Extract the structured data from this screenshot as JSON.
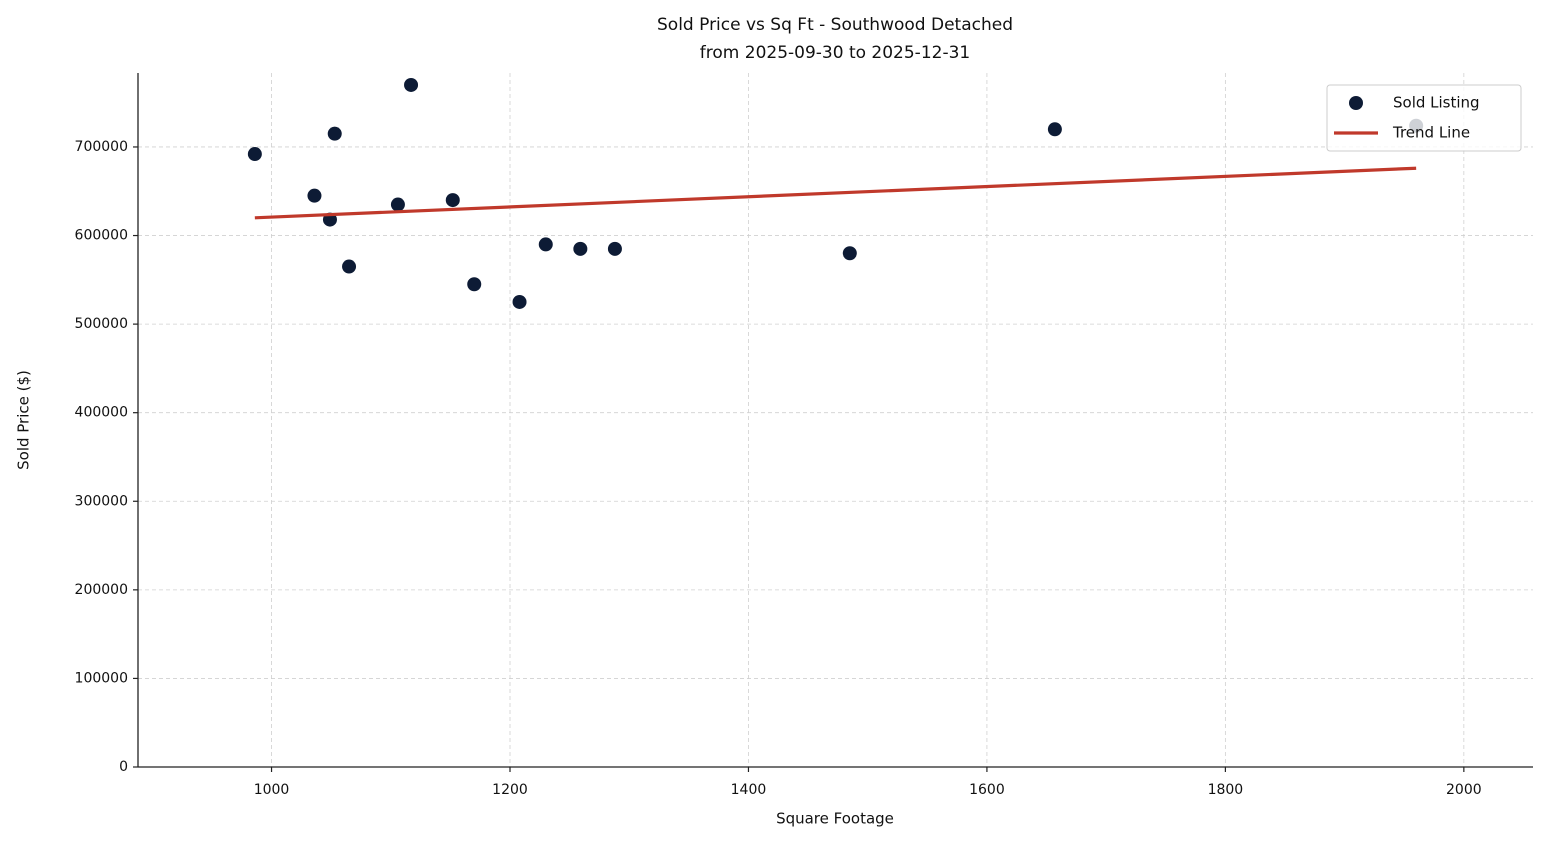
{
  "chart_data": {
    "type": "scatter",
    "title": "Sold Price vs Sq Ft - Southwood Detached",
    "subtitle": "from 2025-09-30 to 2025-12-31",
    "xlabel": "Square Footage",
    "ylabel": "Sold Price ($)",
    "xlim": [
      888,
      2058
    ],
    "ylim": [
      0,
      783500
    ],
    "xticks": [
      1000,
      1200,
      1400,
      1600,
      1800,
      2000
    ],
    "yticks": [
      0,
      100000,
      200000,
      300000,
      400000,
      500000,
      600000,
      700000
    ],
    "grid": true,
    "legend": "upper right",
    "series": [
      {
        "name": "Sold Listing",
        "type": "scatter",
        "color": "#0d1b35",
        "x": [
          986,
          1036,
          1049,
          1053,
          1065,
          1106,
          1117,
          1152,
          1170,
          1208,
          1230,
          1259,
          1288,
          1485,
          1657,
          1960
        ],
        "values": [
          692000,
          645000,
          618000,
          715000,
          565000,
          635000,
          770000,
          640000,
          545000,
          525000,
          590000,
          585000,
          585000,
          580000,
          720000,
          724000
        ]
      },
      {
        "name": "Trend Line",
        "type": "line",
        "color": "#c0392b",
        "x": [
          986,
          1960
        ],
        "values": [
          620000,
          676000
        ]
      }
    ]
  }
}
